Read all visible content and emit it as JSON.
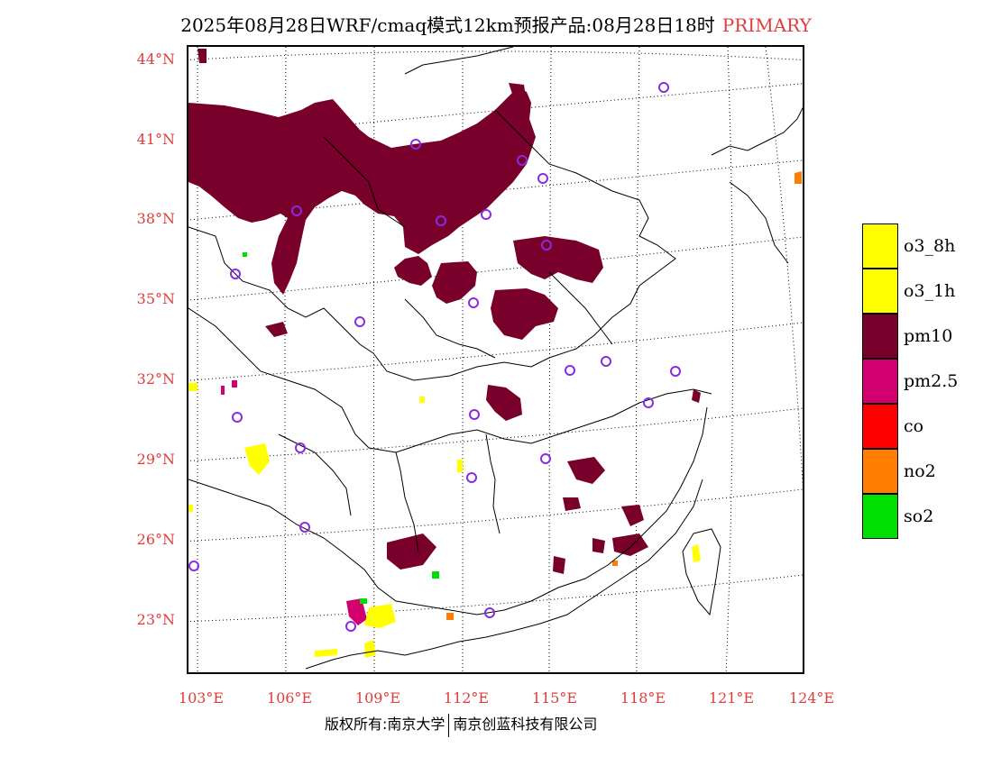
{
  "title": {
    "main": "2025年08月28日WRF/cmaq模式12km预报产品:08月28日18时",
    "tag": "PRIMARY"
  },
  "axes": {
    "lat_labels": [
      "44°N",
      "41°N",
      "38°N",
      "35°N",
      "32°N",
      "29°N",
      "26°N",
      "23°N"
    ],
    "lon_labels": [
      "103°E",
      "106°E",
      "109°E",
      "112°E",
      "115°E",
      "118°E",
      "121°E",
      "124°E"
    ]
  },
  "legend": {
    "items": [
      {
        "label": "o3_8h",
        "color": "#ffff00"
      },
      {
        "label": "o3_1h",
        "color": "#ffff00"
      },
      {
        "label": "pm10",
        "color": "#78002a"
      },
      {
        "label": "pm2.5",
        "color": "#d2006e"
      },
      {
        "label": "co",
        "color": "#ff0000"
      },
      {
        "label": "no2",
        "color": "#ff7d00"
      },
      {
        "label": "so2",
        "color": "#00e000"
      }
    ]
  },
  "footer": {
    "left": "版权所有:南京大学",
    "right": "南京创蓝科技有限公司"
  },
  "colors": {
    "label_red": "#e03c3c",
    "pm10": "#78002a",
    "pm25": "#d2006e",
    "o3": "#ffff00",
    "no2": "#ff7d00",
    "so2": "#00e000",
    "station": "#8a2be2"
  }
}
